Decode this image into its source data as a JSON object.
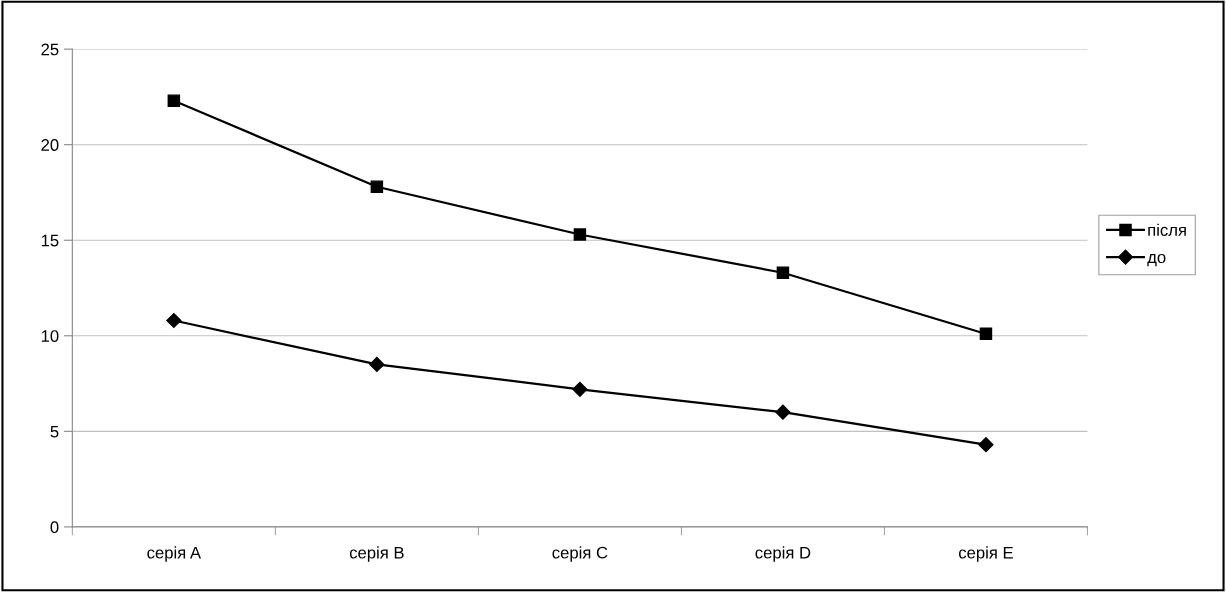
{
  "chart_data": {
    "type": "line",
    "categories": [
      "серія A",
      "серія B",
      "серія C",
      "серія D",
      "серія E"
    ],
    "series": [
      {
        "name": "після",
        "color": "#000000",
        "marker": "square",
        "values": [
          22.3,
          17.8,
          15.3,
          13.3,
          10.1
        ]
      },
      {
        "name": "до",
        "color": "#000000",
        "marker": "diamond",
        "values": [
          10.8,
          8.5,
          7.2,
          6.0,
          4.3
        ]
      }
    ],
    "ylim": [
      0,
      25
    ],
    "yticks": [
      0,
      5,
      10,
      15,
      20,
      25
    ],
    "grid": "y",
    "legend": "right",
    "line_style": "solid"
  }
}
